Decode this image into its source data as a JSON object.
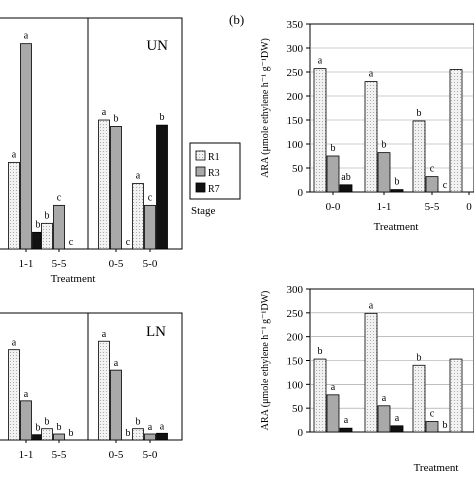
{
  "colors": {
    "R1": "#f0f0f0",
    "R3": "#a9a9a9",
    "R7": "#111111",
    "R1_pattern": "dotted-light-gray"
  },
  "legend": {
    "items": [
      "R1",
      "R3",
      "R7"
    ],
    "title": "Stage"
  },
  "panel_b_label": "(b)",
  "chart_data": [
    {
      "id": "UN",
      "type": "bar",
      "title": "UN",
      "xlabel": "Treatment",
      "ylabel": "",
      "categories": [
        "",
        "1-1",
        "5-5",
        "0-5",
        "5-0"
      ],
      "series": [
        {
          "name": "R1",
          "values": [
            null,
            135,
            40,
            201,
            102
          ],
          "labels": [
            "a",
            "a",
            "b",
            "a",
            "a"
          ]
        },
        {
          "name": "R3",
          "values": [
            null,
            320,
            68,
            191,
            68
          ],
          "labels": [
            "",
            "a",
            "c",
            "b",
            "c"
          ]
        },
        {
          "name": "R7",
          "values": [
            null,
            26,
            null,
            null,
            193
          ],
          "labels": [
            "",
            "b",
            "c",
            "c",
            "b"
          ]
        }
      ],
      "ylim": [
        0,
        360
      ]
    },
    {
      "id": "LN",
      "type": "bar",
      "title": "LN",
      "xlabel": "",
      "ylabel": "",
      "categories": [
        "",
        "1-1",
        "5-5",
        "0-5",
        "5-0"
      ],
      "series": [
        {
          "name": "R1",
          "values": [
            null,
            256,
            32,
            280,
            32
          ],
          "labels": [
            "a",
            "a",
            "b",
            "a",
            "b"
          ]
        },
        {
          "name": "R3",
          "values": [
            null,
            111,
            17,
            198,
            17
          ],
          "labels": [
            "",
            "a",
            "b",
            "a",
            "a"
          ]
        },
        {
          "name": "R7",
          "values": [
            null,
            15,
            null,
            null,
            19
          ],
          "labels": [
            "",
            "b",
            "b",
            "b",
            "a"
          ]
        }
      ],
      "ylim": [
        0,
        360
      ]
    },
    {
      "id": "b-top",
      "type": "bar",
      "title": "",
      "xlabel": "Treatment",
      "ylabel": "ARA (μmole ethylene h⁻¹ g⁻¹DW)",
      "categories": [
        "0-0",
        "1-1",
        "5-5",
        "0"
      ],
      "series": [
        {
          "name": "R1",
          "values": [
            257,
            230,
            148,
            255
          ],
          "labels": [
            "a",
            "a",
            "b",
            ""
          ]
        },
        {
          "name": "R3",
          "values": [
            75,
            82,
            32,
            null
          ],
          "labels": [
            "b",
            "b",
            "c",
            ""
          ]
        },
        {
          "name": "R7",
          "values": [
            15,
            5,
            null,
            null
          ],
          "labels": [
            "ab",
            "b",
            "c",
            ""
          ]
        }
      ],
      "yticks": [
        0,
        50,
        100,
        150,
        200,
        250,
        300,
        350
      ],
      "ylim": [
        0,
        350
      ]
    },
    {
      "id": "b-bottom",
      "type": "bar",
      "title": "",
      "xlabel": "Treatment",
      "ylabel": "ARA (μmole ethylene h⁻¹ g⁻¹DW)",
      "categories": [
        "",
        "",
        "",
        ""
      ],
      "series": [
        {
          "name": "R1",
          "values": [
            153,
            249,
            140,
            153
          ],
          "labels": [
            "b",
            "a",
            "b",
            ""
          ]
        },
        {
          "name": "R3",
          "values": [
            78,
            55,
            22,
            null
          ],
          "labels": [
            "a",
            "a",
            "c",
            ""
          ]
        },
        {
          "name": "R7",
          "values": [
            8,
            13,
            null,
            null
          ],
          "labels": [
            "a",
            "a",
            "b",
            ""
          ]
        }
      ],
      "yticks": [
        0,
        50,
        100,
        150,
        200,
        250,
        300
      ],
      "ylim": [
        0,
        300
      ]
    }
  ]
}
